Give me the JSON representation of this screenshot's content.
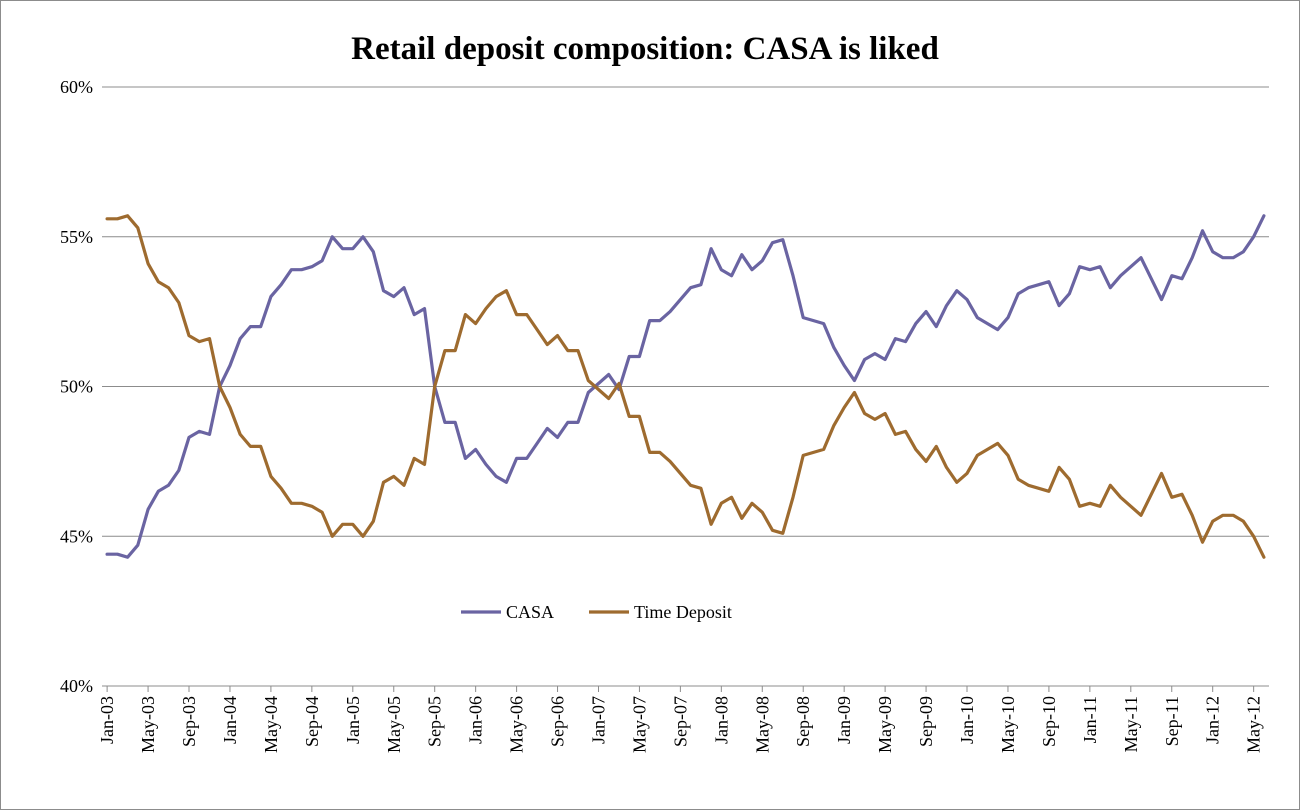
{
  "chart_data": {
    "type": "line",
    "title": "Retail deposit composition: CASA is liked",
    "xlabel": "",
    "ylabel": "",
    "ylim": [
      40,
      60
    ],
    "yticks": [
      40,
      45,
      50,
      55,
      60
    ],
    "ytick_labels": [
      "40%",
      "45%",
      "50%",
      "55%",
      "60%"
    ],
    "grid": true,
    "legend_position": "lower-center",
    "x_tick_labels": [
      "Jan-03",
      "May-03",
      "Sep-03",
      "Jan-04",
      "May-04",
      "Sep-04",
      "Jan-05",
      "May-05",
      "Sep-05",
      "Jan-06",
      "May-06",
      "Sep-06",
      "Jan-07",
      "May-07",
      "Sep-07",
      "Jan-08",
      "May-08",
      "Sep-08",
      "Jan-09",
      "May-09",
      "Sep-09",
      "Jan-10",
      "May-10",
      "Sep-10",
      "Jan-11",
      "May-11",
      "Sep-11",
      "Jan-12",
      "May-12"
    ],
    "x_tick_indices": [
      0,
      4,
      8,
      12,
      16,
      20,
      24,
      28,
      32,
      36,
      40,
      44,
      48,
      52,
      56,
      60,
      64,
      68,
      72,
      76,
      80,
      84,
      88,
      92,
      96,
      100,
      104,
      108,
      112
    ],
    "series": [
      {
        "name": "CASA",
        "color": "#6a64a2",
        "values": [
          44.4,
          44.4,
          44.3,
          44.7,
          45.9,
          46.5,
          46.7,
          47.2,
          48.3,
          48.5,
          48.4,
          50.0,
          50.7,
          51.6,
          52.0,
          52.0,
          53.0,
          53.4,
          53.9,
          53.9,
          54.0,
          54.2,
          55.0,
          54.6,
          54.6,
          55.0,
          54.5,
          53.2,
          53.0,
          53.3,
          52.4,
          52.6,
          50.0,
          48.8,
          48.8,
          47.6,
          47.9,
          47.4,
          47.0,
          46.8,
          47.6,
          47.6,
          48.1,
          48.6,
          48.3,
          48.8,
          48.8,
          49.8,
          50.1,
          50.4,
          49.9,
          51.0,
          51.0,
          52.2,
          52.2,
          52.5,
          52.9,
          53.3,
          53.4,
          54.6,
          53.9,
          53.7,
          54.4,
          53.9,
          54.2,
          54.8,
          54.9,
          53.7,
          52.3,
          52.2,
          52.1,
          51.3,
          50.7,
          50.2,
          50.9,
          51.1,
          50.9,
          51.6,
          51.5,
          52.1,
          52.5,
          52.0,
          52.7,
          53.2,
          52.9,
          52.3,
          52.1,
          51.9,
          52.3,
          53.1,
          53.3,
          53.4,
          53.5,
          52.7,
          53.1,
          54.0,
          53.9,
          54.0,
          53.3,
          53.7,
          54.0,
          54.3,
          53.6,
          52.9,
          53.7,
          53.6,
          54.3,
          55.2,
          54.5,
          54.3,
          54.3,
          54.5,
          55.0,
          55.7
        ]
      },
      {
        "name": "Time Deposit",
        "color": "#9e6b2f",
        "values": [
          55.6,
          55.6,
          55.7,
          55.3,
          54.1,
          53.5,
          53.3,
          52.8,
          51.7,
          51.5,
          51.6,
          50.0,
          49.3,
          48.4,
          48.0,
          48.0,
          47.0,
          46.6,
          46.1,
          46.1,
          46.0,
          45.8,
          45.0,
          45.4,
          45.4,
          45.0,
          45.5,
          46.8,
          47.0,
          46.7,
          47.6,
          47.4,
          50.0,
          51.2,
          51.2,
          52.4,
          52.1,
          52.6,
          53.0,
          53.2,
          52.4,
          52.4,
          51.9,
          51.4,
          51.7,
          51.2,
          51.2,
          50.2,
          49.9,
          49.6,
          50.1,
          49.0,
          49.0,
          47.8,
          47.8,
          47.5,
          47.1,
          46.7,
          46.6,
          45.4,
          46.1,
          46.3,
          45.6,
          46.1,
          45.8,
          45.2,
          45.1,
          46.3,
          47.7,
          47.8,
          47.9,
          48.7,
          49.3,
          49.8,
          49.1,
          48.9,
          49.1,
          48.4,
          48.5,
          47.9,
          47.5,
          48.0,
          47.3,
          46.8,
          47.1,
          47.7,
          47.9,
          48.1,
          47.7,
          46.9,
          46.7,
          46.6,
          46.5,
          47.3,
          46.9,
          46.0,
          46.1,
          46.0,
          46.7,
          46.3,
          46.0,
          45.7,
          46.4,
          47.1,
          46.3,
          46.4,
          45.7,
          44.8,
          45.5,
          45.7,
          45.7,
          45.5,
          45.0,
          44.3
        ]
      }
    ]
  }
}
